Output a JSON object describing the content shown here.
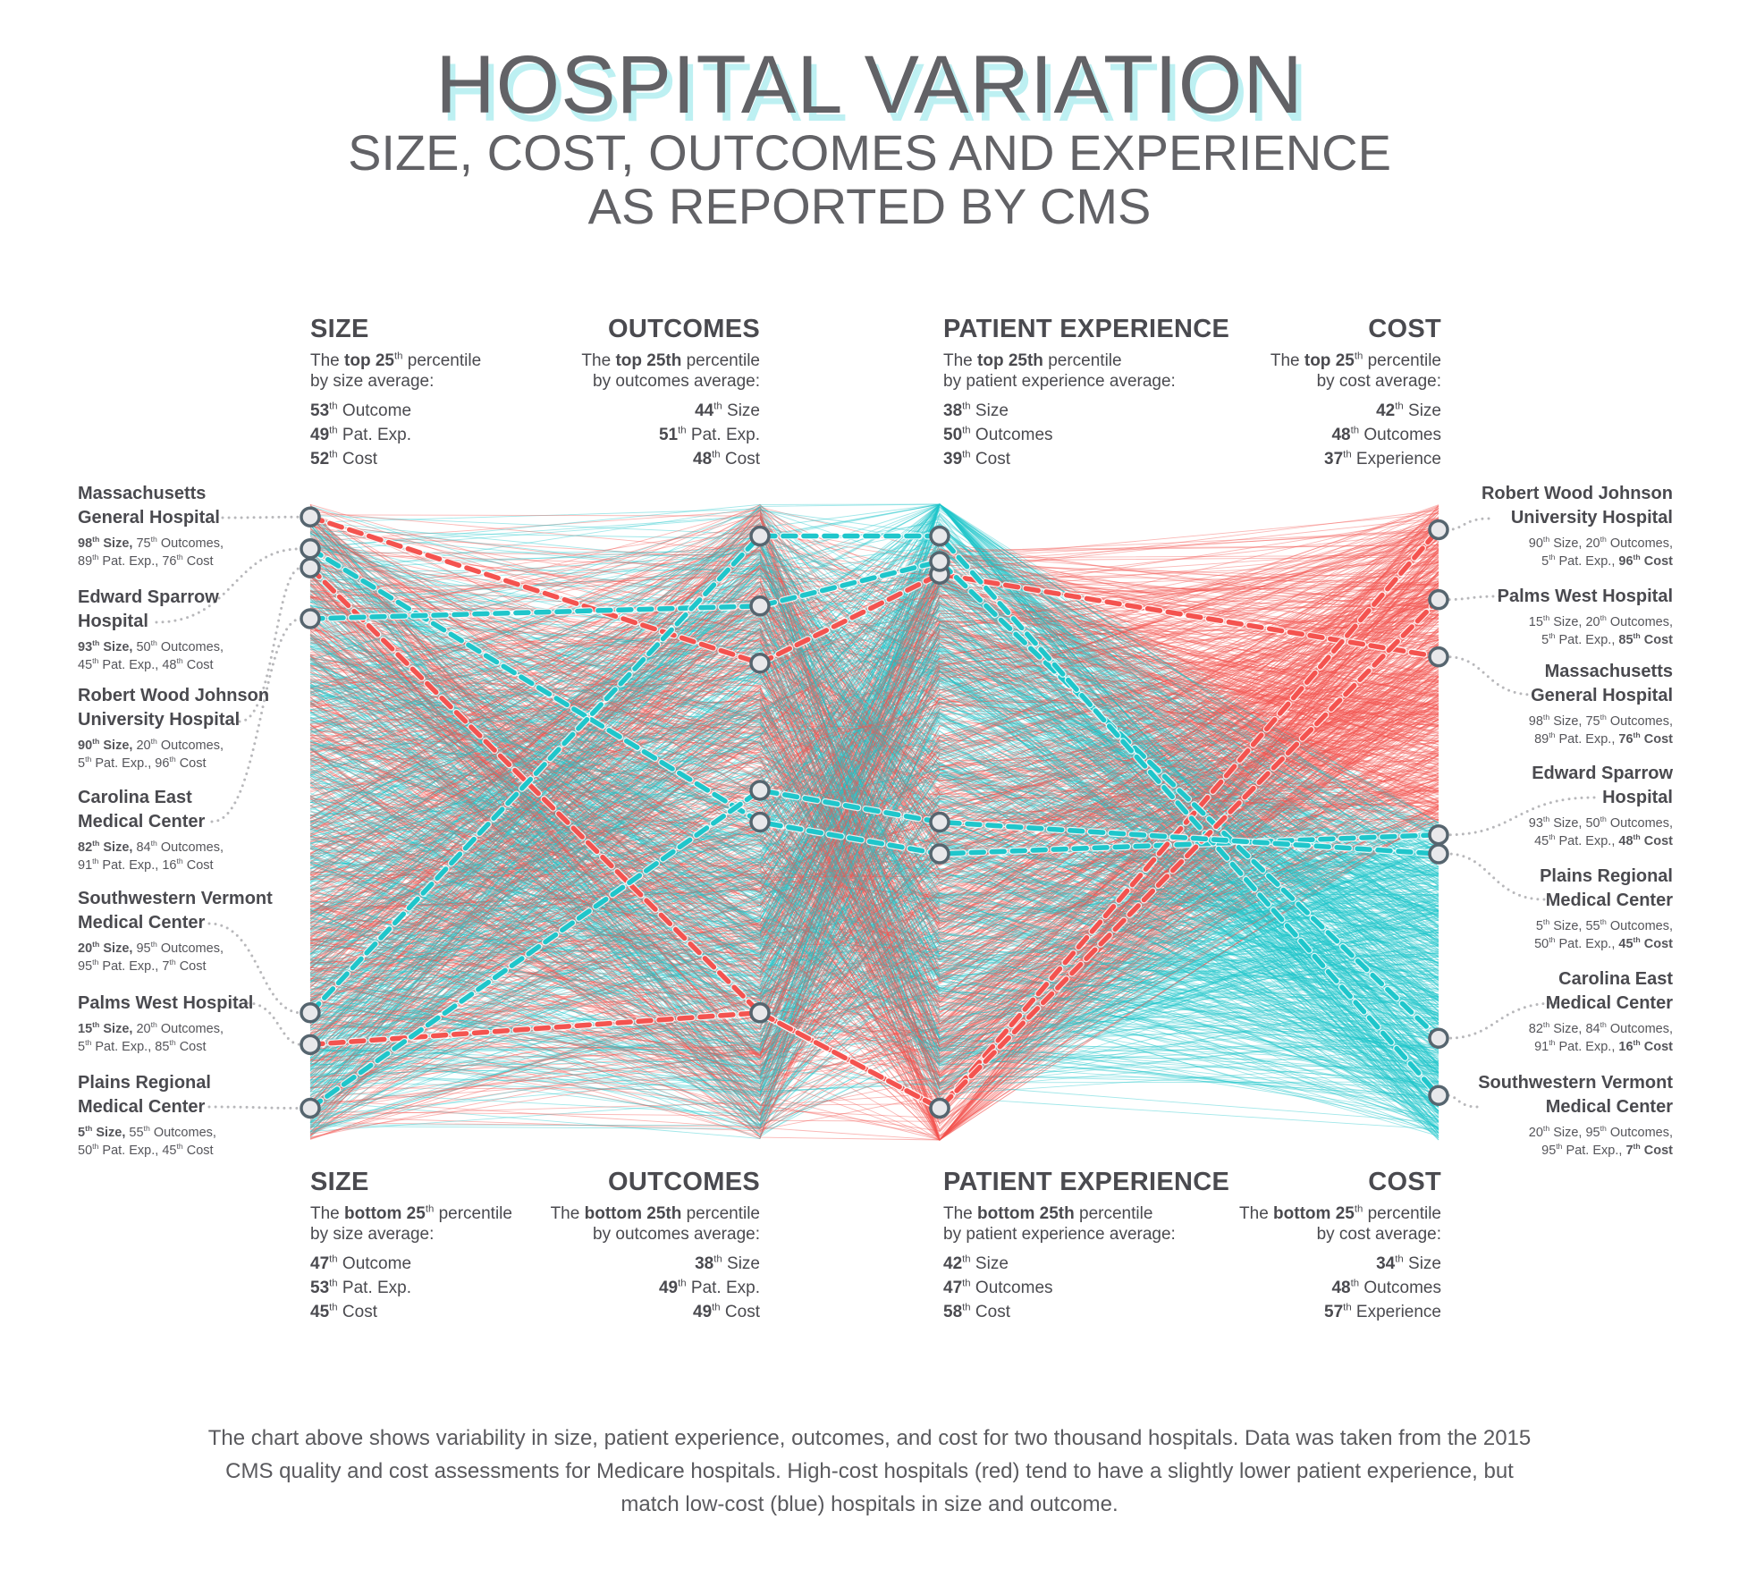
{
  "title": "HOSPITAL VARIATION",
  "subtitle_lines": [
    "SIZE, COST, OUTCOMES AND EXPERIENCE",
    "AS REPORTED BY CMS"
  ],
  "colors": {
    "high_cost": "#f4534f",
    "low_cost": "#1fc6cb",
    "node_fill": "#e8e8eb",
    "node_stroke": "#56656f",
    "text": "#4a4a4f"
  },
  "top_blocks": [
    {
      "heading": "SIZE",
      "pre": "The ",
      "bold": "top 25",
      "sup": "th",
      "post": " percentile",
      "line2": "by size average:",
      "stats": [
        {
          "n": "53",
          "sup": "th",
          "label": " Outcome"
        },
        {
          "n": "49",
          "sup": "th",
          "label": " Pat. Exp."
        },
        {
          "n": "52",
          "sup": "th",
          "label": " Cost"
        }
      ]
    },
    {
      "heading": "OUTCOMES",
      "pre": "The ",
      "bold": "top 25th",
      "sup": "",
      "post": " percentile",
      "line2": "by outcomes average:",
      "stats": [
        {
          "n": "44",
          "sup": "th",
          "label": " Size"
        },
        {
          "n": "51",
          "sup": "th",
          "label": " Pat. Exp."
        },
        {
          "n": "48",
          "sup": "th",
          "label": " Cost"
        }
      ]
    },
    {
      "heading": "PATIENT EXPERIENCE",
      "pre": "The ",
      "bold": "top 25th",
      "sup": "",
      "post": " percentile",
      "line2": "by patient experience average:",
      "stats": [
        {
          "n": "38",
          "sup": "th",
          "label": " Size"
        },
        {
          "n": "50",
          "sup": "th",
          "label": " Outcomes"
        },
        {
          "n": "39",
          "sup": "th",
          "label": " Cost"
        }
      ]
    },
    {
      "heading": "COST",
      "pre": "The ",
      "bold": "top 25",
      "sup": "th",
      "post": " percentile",
      "line2": "by cost average:",
      "stats": [
        {
          "n": "42",
          "sup": "th",
          "label": " Size"
        },
        {
          "n": "48",
          "sup": "th",
          "label": " Outcomes"
        },
        {
          "n": "37",
          "sup": "th",
          "label": " Experience"
        }
      ]
    }
  ],
  "bottom_blocks": [
    {
      "heading": "SIZE",
      "pre": "The ",
      "bold": "bottom 25",
      "sup": "th",
      "post": " percentile",
      "line2": "by size average:",
      "stats": [
        {
          "n": "47",
          "sup": "th",
          "label": " Outcome"
        },
        {
          "n": "53",
          "sup": "th",
          "label": " Pat. Exp."
        },
        {
          "n": "45",
          "sup": "th",
          "label": " Cost"
        }
      ]
    },
    {
      "heading": "OUTCOMES",
      "pre": "The ",
      "bold": "bottom 25th",
      "sup": "",
      "post": " percentile",
      "line2": "by outcomes average:",
      "stats": [
        {
          "n": "38",
          "sup": "th",
          "label": " Size"
        },
        {
          "n": "49",
          "sup": "th",
          "label": " Pat. Exp."
        },
        {
          "n": "49",
          "sup": "th",
          "label": " Cost"
        }
      ]
    },
    {
      "heading": "PATIENT EXPERIENCE",
      "pre": "The ",
      "bold": "bottom 25th",
      "sup": "",
      "post": " percentile",
      "line2": "by patient experience average:",
      "stats": [
        {
          "n": "42",
          "sup": "th",
          "label": " Size"
        },
        {
          "n": "47",
          "sup": "th",
          "label": " Outcomes"
        },
        {
          "n": "58",
          "sup": "th",
          "label": " Cost"
        }
      ]
    },
    {
      "heading": "COST",
      "pre": "The ",
      "bold": "bottom 25",
      "sup": "th",
      "post": " percentile",
      "line2": "by cost average:",
      "stats": [
        {
          "n": "34",
          "sup": "th",
          "label": " Size"
        },
        {
          "n": "48",
          "sup": "th",
          "label": " Outcomes"
        },
        {
          "n": "57",
          "sup": "th",
          "label": " Experience"
        }
      ]
    }
  ],
  "chart_data": {
    "type": "parallel-coordinates",
    "axes": [
      "Size",
      "Outcomes",
      "Patient Experience",
      "Cost"
    ],
    "axis_range": [
      0,
      100
    ],
    "stat_labels": [
      "Size,",
      "Outcomes,",
      "Pat. Exp.,",
      "Cost"
    ],
    "ordinal_suffix": "th",
    "color_rule": "red = high cost, blue = low cost",
    "hospitals": [
      {
        "name_lines": [
          "Massachusetts",
          "General Hospital"
        ],
        "size": 98,
        "outcomes": 75,
        "patient_experience": 89,
        "cost": 76
      },
      {
        "name_lines": [
          "Edward Sparrow",
          "Hospital"
        ],
        "size": 93,
        "outcomes": 50,
        "patient_experience": 45,
        "cost": 48
      },
      {
        "name_lines": [
          "Robert Wood Johnson",
          "University Hospital"
        ],
        "size": 90,
        "outcomes": 20,
        "patient_experience": 5,
        "cost": 96
      },
      {
        "name_lines": [
          "Carolina East",
          "Medical Center"
        ],
        "size": 82,
        "outcomes": 84,
        "patient_experience": 91,
        "cost": 16
      },
      {
        "name_lines": [
          "Southwestern Vermont",
          "Medical Center"
        ],
        "size": 20,
        "outcomes": 95,
        "patient_experience": 95,
        "cost": 7
      },
      {
        "name_lines": [
          "Palms West Hospital"
        ],
        "size": 15,
        "outcomes": 20,
        "patient_experience": 5,
        "cost": 85
      },
      {
        "name_lines": [
          "Plains Regional",
          "Medical Center"
        ],
        "size": 5,
        "outcomes": 55,
        "patient_experience": 50,
        "cost": 45
      }
    ]
  },
  "footer_lines": [
    "The chart above shows variability in size, patient experience, outcomes, and cost for two thousand hospitals. Data was taken from the 2015",
    "CMS quality and cost assessments for Medicare hospitals. High-cost hospitals (red) tend to have a slightly lower patient experience, but",
    "match low-cost (blue) hospitals in size and outcome."
  ]
}
